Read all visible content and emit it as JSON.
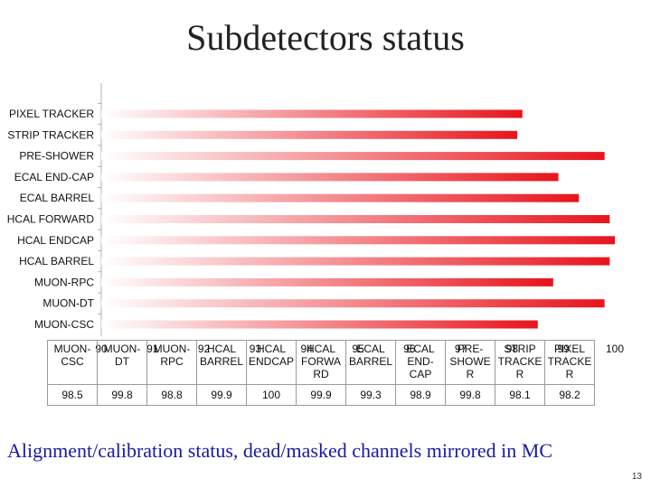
{
  "title": "Subdetectors status",
  "caption": "Alignment/calibration status, dead/masked channels mirrored in MC",
  "page_number": "13",
  "chart_data": {
    "type": "bar",
    "orientation": "horizontal",
    "categories": [
      "PIXEL TRACKER",
      "STRIP TRACKER",
      "PRE-SHOWER",
      "ECAL END-CAP",
      "ECAL BARREL",
      "HCAL FORWARD",
      "HCAL ENDCAP",
      "HCAL BARREL",
      "MUON-RPC",
      "MUON-DT",
      "MUON-CSC"
    ],
    "values": [
      98.2,
      98.1,
      99.8,
      98.9,
      99.3,
      99.9,
      100,
      99.9,
      98.8,
      99.8,
      98.5
    ],
    "xlim": [
      90,
      100
    ],
    "xticks": [
      90,
      91,
      92,
      93,
      94,
      95,
      96,
      97,
      98,
      99,
      100
    ],
    "bar_color": "#e8141c",
    "gradient_start_color": "#ffffff",
    "grid": false,
    "table": {
      "headers": [
        [
          "MUON-",
          "CSC"
        ],
        [
          "MUON-",
          "DT"
        ],
        [
          "MUON-",
          "RPC"
        ],
        [
          "HCAL",
          "BARREL"
        ],
        [
          "HCAL",
          "ENDCAP"
        ],
        [
          "HCAL",
          "FORWA",
          "RD"
        ],
        [
          "ECAL",
          "BARREL"
        ],
        [
          "ECAL",
          "END-",
          "CAP"
        ],
        [
          "PRE-",
          "SHOWE",
          "R"
        ],
        [
          "STRIP",
          "TRACKE",
          "R"
        ],
        [
          "PIXEL",
          "TRACKE",
          "R"
        ]
      ],
      "values": [
        "98.5",
        "99.8",
        "98.8",
        "99.9",
        "100",
        "99.9",
        "99.3",
        "98.9",
        "99.8",
        "98.1",
        "98.2"
      ]
    }
  }
}
